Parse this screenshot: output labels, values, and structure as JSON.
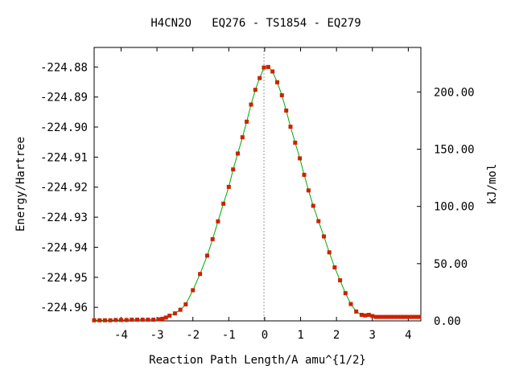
{
  "chart_data": {
    "type": "line",
    "title": "H4CN2O   EQ276 - TS1854 - EQ279",
    "xlabel": "Reaction Path Length/A amu^{1/2}",
    "ylabel": "Energy/Hartree",
    "y2label": "kJ/mol",
    "xlim": [
      -4.75,
      4.35
    ],
    "ylim": [
      -224.9645,
      -224.8735
    ],
    "y2lim": [
      0.0,
      238.9
    ],
    "x_ticks": [
      -4,
      -3,
      -2,
      -1,
      0,
      1,
      2,
      3,
      4
    ],
    "y_ticks": [
      -224.88,
      -224.89,
      -224.9,
      -224.91,
      -224.92,
      -224.93,
      -224.94,
      -224.95,
      -224.96
    ],
    "y_tick_labels": [
      "-224.88",
      "-224.89",
      "-224.90",
      "-224.91",
      "-224.92",
      "-224.93",
      "-224.94",
      "-224.95",
      "-224.96"
    ],
    "y2_ticks": [
      0,
      50,
      100,
      150,
      200
    ],
    "y2_tick_labels": [
      "0.00",
      "50.00",
      "100.00",
      "150.00",
      "200.00"
    ],
    "ts_x": -0.02,
    "colors": {
      "line": "#00aa00",
      "marker": "#cc2200",
      "ts_line": "#999999"
    },
    "series": [
      {
        "x": [
          -4.75,
          -4.6,
          -4.45,
          -4.3,
          -4.15,
          -4.0,
          -3.85,
          -3.7,
          -3.55,
          -3.4,
          -3.25,
          -3.1,
          -2.95,
          -2.85,
          -2.75,
          -2.65,
          -2.5,
          -2.35,
          -2.2,
          -2.0,
          -1.8,
          -1.6,
          -1.45,
          -1.3,
          -1.15,
          -1.0,
          -0.88,
          -0.75,
          -0.62,
          -0.5,
          -0.38,
          -0.26,
          -0.14,
          -0.02,
          0.1,
          0.22,
          0.35,
          0.48,
          0.6,
          0.72,
          0.85,
          0.98,
          1.1,
          1.22,
          1.35,
          1.5,
          1.65,
          1.8,
          1.95,
          2.1,
          2.25,
          2.4,
          2.55,
          2.7,
          2.8,
          2.9,
          3.0,
          3.1,
          3.2,
          3.3,
          3.4,
          3.5,
          3.6,
          3.7,
          3.8,
          3.9,
          4.0,
          4.1,
          4.2,
          4.3
        ],
        "y": [
          -224.9643,
          -224.9643,
          -224.9643,
          -224.9643,
          -224.9642,
          -224.9642,
          -224.9642,
          -224.9641,
          -224.9641,
          -224.9641,
          -224.9641,
          -224.9641,
          -224.964,
          -224.9638,
          -224.9634,
          -224.9628,
          -224.962,
          -224.9608,
          -224.959,
          -224.9543,
          -224.9489,
          -224.9428,
          -224.9373,
          -224.9314,
          -224.9255,
          -224.9199,
          -224.9141,
          -224.9088,
          -224.9034,
          -224.8982,
          -224.8925,
          -224.8876,
          -224.8837,
          -224.8802,
          -224.88,
          -224.8815,
          -224.8851,
          -224.8894,
          -224.8945,
          -224.8999,
          -224.9052,
          -224.9104,
          -224.9159,
          -224.9211,
          -224.9262,
          -224.9313,
          -224.9364,
          -224.9417,
          -224.9467,
          -224.951,
          -224.9553,
          -224.9589,
          -224.9614,
          -224.9625,
          -224.9627,
          -224.9625,
          -224.9629,
          -224.9632,
          -224.9632,
          -224.9632,
          -224.9632,
          -224.9632,
          -224.9632,
          -224.9632,
          -224.9632,
          -224.9632,
          -224.9632,
          -224.9632,
          -224.9632,
          -224.9632
        ]
      }
    ]
  }
}
